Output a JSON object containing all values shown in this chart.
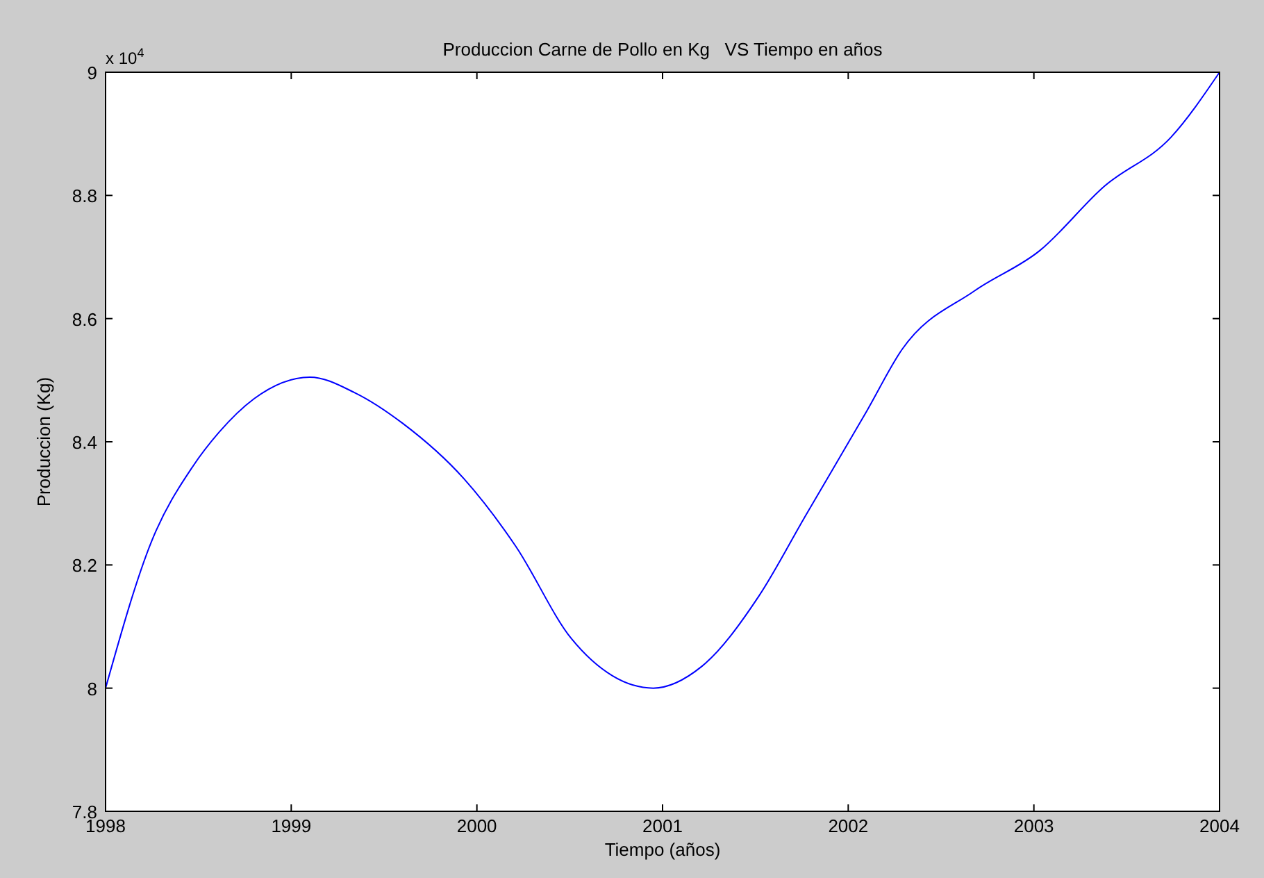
{
  "chart_data": {
    "type": "line",
    "title": "Produccion Carne de Pollo en Kg   VS Tiempo en años",
    "xlabel": "Tiempo (años)",
    "ylabel": "Produccion (Kg)",
    "annotations": [
      "x 10$^{4}$"
    ],
    "x": [
      1998,
      1998.25,
      1998.47,
      1998.61,
      1998.8,
      1999.1,
      1999.34,
      1999.6,
      1999.93,
      2000.21,
      2000.51,
      2000.73,
      2000.95,
      2001.21,
      2001.52,
      2001.77,
      2002.1,
      2002.29,
      2002.68,
      2003.03,
      2003.38,
      2003.74,
      2004
    ],
    "series": [
      {
        "color": "#0000ff",
        "values": [
          8.0,
          8.24,
          8.36,
          8.415,
          8.47,
          8.505,
          8.48,
          8.43,
          8.34,
          8.23,
          8.08,
          8.02,
          8.0,
          8.035,
          8.15,
          8.28,
          8.45,
          8.55,
          8.645,
          8.71,
          8.815,
          8.895,
          9.0
        ]
      }
    ],
    "xlim": [
      1998,
      2004
    ],
    "xticks": [
      1998,
      1999,
      2000,
      2001,
      2002,
      2003,
      2004
    ],
    "ylim": [
      7.8,
      9
    ],
    "yticks": [
      7.8,
      8,
      8.2,
      8.4,
      8.6,
      8.8,
      9
    ],
    "marker": "none",
    "line_style": "solid"
  }
}
